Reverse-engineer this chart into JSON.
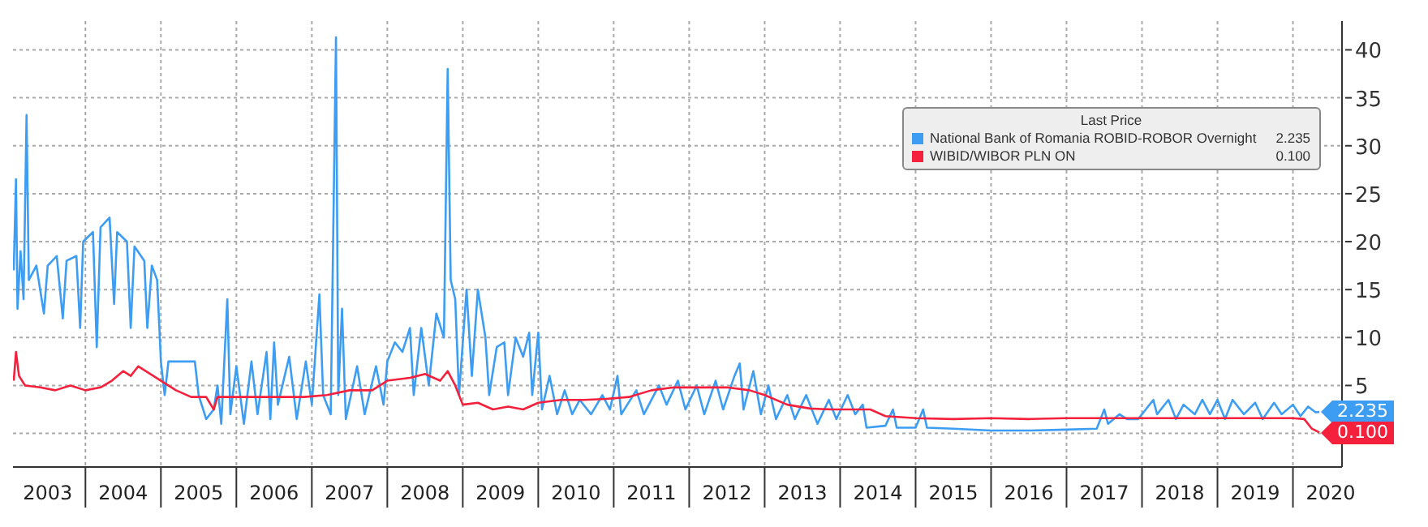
{
  "chart_data": {
    "type": "line",
    "legend_title": "Last Price",
    "legend": "top right",
    "grid": true,
    "marker": "none",
    "line_style": "solid",
    "xlim": [
      2003.04,
      2020.65
    ],
    "xticks": [
      {
        "value": 2003.5,
        "label": "2003"
      },
      {
        "value": 2004,
        "label": null
      },
      {
        "value": 2004.5,
        "label": "2004"
      },
      {
        "value": 2005,
        "label": null
      },
      {
        "value": 2005.5,
        "label": "2005"
      },
      {
        "value": 2006,
        "label": null
      },
      {
        "value": 2006.5,
        "label": "2006"
      },
      {
        "value": 2007,
        "label": null
      },
      {
        "value": 2007.5,
        "label": "2007"
      },
      {
        "value": 2008,
        "label": null
      },
      {
        "value": 2008.5,
        "label": "2008"
      },
      {
        "value": 2009,
        "label": null
      },
      {
        "value": 2009.5,
        "label": "2009"
      },
      {
        "value": 2010,
        "label": null
      },
      {
        "value": 2010.5,
        "label": "2010"
      },
      {
        "value": 2011,
        "label": null
      },
      {
        "value": 2011.5,
        "label": "2011"
      },
      {
        "value": 2012,
        "label": null
      },
      {
        "value": 2012.5,
        "label": "2012"
      },
      {
        "value": 2013,
        "label": null
      },
      {
        "value": 2013.5,
        "label": "2013"
      },
      {
        "value": 2014,
        "label": null
      },
      {
        "value": 2014.5,
        "label": "2014"
      },
      {
        "value": 2015,
        "label": null
      },
      {
        "value": 2015.5,
        "label": "2015"
      },
      {
        "value": 2016,
        "label": null
      },
      {
        "value": 2016.5,
        "label": "2016"
      },
      {
        "value": 2017,
        "label": null
      },
      {
        "value": 2017.5,
        "label": "2017"
      },
      {
        "value": 2018,
        "label": null
      },
      {
        "value": 2018.5,
        "label": "2018"
      },
      {
        "value": 2019,
        "label": null
      },
      {
        "value": 2019.5,
        "label": "2019"
      },
      {
        "value": 2020,
        "label": null
      },
      {
        "value": 2020.5,
        "label": "2020"
      }
    ],
    "ylim": [
      -3.5,
      43
    ],
    "yticks": [
      {
        "value": 0,
        "label": null
      },
      5,
      10,
      15,
      20,
      25,
      30,
      35,
      40
    ],
    "annotations": [
      {
        "text": "2.235",
        "x": 2020.35,
        "y": 2.235
      },
      {
        "text": "0.100",
        "x": 2020.35,
        "y": 0.1
      }
    ],
    "series": [
      {
        "name": "National Bank of Romania ROBID-ROBOR Overnight",
        "color": "#3d9df3",
        "x": [
          2003.05,
          2003.08,
          2003.1,
          2003.14,
          2003.18,
          2003.22,
          2003.25,
          2003.35,
          2003.45,
          2003.5,
          2003.62,
          2003.7,
          2003.75,
          2003.88,
          2003.93,
          2003.97,
          2004.1,
          2004.15,
          2004.2,
          2004.32,
          2004.38,
          2004.42,
          2004.55,
          2004.6,
          2004.65,
          2004.78,
          2004.82,
          2004.88,
          2004.95,
          2005.0,
          2005.05,
          2005.1,
          2005.3,
          2005.45,
          2005.5,
          2005.6,
          2005.7,
          2005.75,
          2005.8,
          2005.88,
          2005.92,
          2006.0,
          2006.1,
          2006.2,
          2006.28,
          2006.4,
          2006.45,
          2006.5,
          2006.55,
          2006.7,
          2006.8,
          2006.92,
          2007.0,
          2007.1,
          2007.15,
          2007.25,
          2007.32,
          2007.35,
          2007.4,
          2007.45,
          2007.6,
          2007.7,
          2007.85,
          2007.95,
          2008.0,
          2008.1,
          2008.2,
          2008.3,
          2008.35,
          2008.45,
          2008.55,
          2008.65,
          2008.75,
          2008.8,
          2008.84,
          2008.9,
          2008.95,
          2009.05,
          2009.12,
          2009.2,
          2009.3,
          2009.35,
          2009.45,
          2009.55,
          2009.6,
          2009.7,
          2009.8,
          2009.88,
          2009.92,
          2010.0,
          2010.05,
          2010.15,
          2010.25,
          2010.35,
          2010.45,
          2010.55,
          2010.7,
          2010.85,
          2010.95,
          2011.05,
          2011.1,
          2011.3,
          2011.4,
          2011.6,
          2011.7,
          2011.85,
          2011.95,
          2012.1,
          2012.2,
          2012.35,
          2012.45,
          2012.6,
          2012.67,
          2012.72,
          2012.85,
          2012.95,
          2013.05,
          2013.15,
          2013.3,
          2013.4,
          2013.55,
          2013.7,
          2013.85,
          2013.95,
          2014.1,
          2014.2,
          2014.3,
          2014.35,
          2014.6,
          2014.7,
          2014.75,
          2015.0,
          2015.1,
          2015.15,
          2015.5,
          2016.0,
          2016.5,
          2017.0,
          2017.4,
          2017.5,
          2017.55,
          2017.7,
          2017.8,
          2017.95,
          2018.05,
          2018.15,
          2018.2,
          2018.35,
          2018.45,
          2018.55,
          2018.7,
          2018.8,
          2018.9,
          2019.0,
          2019.1,
          2019.2,
          2019.35,
          2019.5,
          2019.6,
          2019.75,
          2019.85,
          2020.0,
          2020.1,
          2020.2,
          2020.3,
          2020.35
        ],
        "values": [
          17,
          26.5,
          13,
          19,
          14,
          33.2,
          16,
          17.5,
          12.5,
          17.5,
          18.5,
          12,
          18,
          18.5,
          11,
          20,
          21,
          9,
          21.5,
          22.5,
          13.5,
          21,
          20,
          11,
          19.5,
          18,
          11,
          17.5,
          16,
          7.5,
          4,
          7.5,
          7.5,
          7.5,
          4,
          1.5,
          2.5,
          5,
          1,
          14,
          2,
          7,
          1,
          7.5,
          2,
          8.5,
          1.5,
          9.5,
          3,
          8,
          1.5,
          7.5,
          3,
          14.5,
          4,
          2,
          41.3,
          4,
          13,
          1.5,
          7,
          2,
          7,
          3,
          7.5,
          9.5,
          8.5,
          11,
          4,
          11,
          5,
          12.5,
          10,
          38,
          16,
          14,
          4,
          15,
          6,
          15,
          10,
          4,
          9,
          9.5,
          4,
          10,
          8,
          10.5,
          4,
          10.5,
          2.5,
          6,
          2,
          4.5,
          2,
          3.5,
          2,
          4,
          2.5,
          6,
          2,
          4.5,
          2,
          5,
          3,
          5.5,
          2.5,
          5,
          2,
          5.5,
          2.5,
          6,
          7.3,
          2.5,
          6.5,
          2,
          5,
          1.5,
          4,
          1.5,
          4,
          1,
          3.5,
          1.5,
          4,
          2,
          3,
          0.6,
          0.8,
          2.5,
          0.6,
          0.6,
          2.5,
          0.6,
          0.5,
          0.3,
          0.3,
          0.4,
          0.5,
          2.5,
          1,
          2,
          1.5,
          1.5,
          2.5,
          3.5,
          2,
          3.5,
          1.5,
          3,
          2,
          3.5,
          2,
          3.5,
          1.5,
          3.5,
          2,
          3.2,
          1.5,
          3.2,
          2,
          3,
          1.8,
          2.8,
          2.2,
          2.235
        ]
      },
      {
        "name": "WIBID/WIBOR PLN ON",
        "color": "#f4203c",
        "x": [
          2003.05,
          2003.08,
          2003.12,
          2003.2,
          2003.4,
          2003.6,
          2003.8,
          2004.0,
          2004.2,
          2004.35,
          2004.5,
          2004.6,
          2004.7,
          2004.9,
          2005.0,
          2005.2,
          2005.4,
          2005.6,
          2005.7,
          2005.75,
          2006.0,
          2006.3,
          2006.6,
          2006.9,
          2007.2,
          2007.5,
          2007.8,
          2008.0,
          2008.3,
          2008.5,
          2008.7,
          2008.8,
          2008.9,
          2009.0,
          2009.2,
          2009.4,
          2009.6,
          2009.8,
          2010.0,
          2010.3,
          2010.6,
          2010.9,
          2011.2,
          2011.5,
          2011.8,
          2012.1,
          2012.5,
          2012.8,
          2013.0,
          2013.3,
          2013.6,
          2013.9,
          2014.2,
          2014.4,
          2014.6,
          2015.0,
          2015.5,
          2016.0,
          2016.5,
          2017.0,
          2017.5,
          2018.0,
          2018.5,
          2019.0,
          2019.5,
          2020.0,
          2020.15,
          2020.25,
          2020.35
        ],
        "values": [
          5.5,
          8.5,
          6,
          5,
          4.8,
          4.5,
          5,
          4.5,
          4.8,
          5.5,
          6.5,
          6,
          7,
          6,
          5.5,
          4.5,
          3.8,
          3.8,
          2.5,
          3.8,
          3.8,
          3.8,
          3.8,
          3.8,
          4,
          4.5,
          4.5,
          5.5,
          5.8,
          6.2,
          5.5,
          6.5,
          5,
          3,
          3.2,
          2.5,
          2.8,
          2.5,
          3.2,
          3.5,
          3.5,
          3.6,
          3.8,
          4.5,
          4.8,
          4.8,
          4.8,
          4.5,
          4,
          3,
          2.6,
          2.5,
          2.5,
          2.5,
          1.8,
          1.6,
          1.5,
          1.6,
          1.5,
          1.6,
          1.6,
          1.6,
          1.6,
          1.6,
          1.6,
          1.6,
          1.5,
          0.5,
          0.1
        ]
      }
    ]
  }
}
